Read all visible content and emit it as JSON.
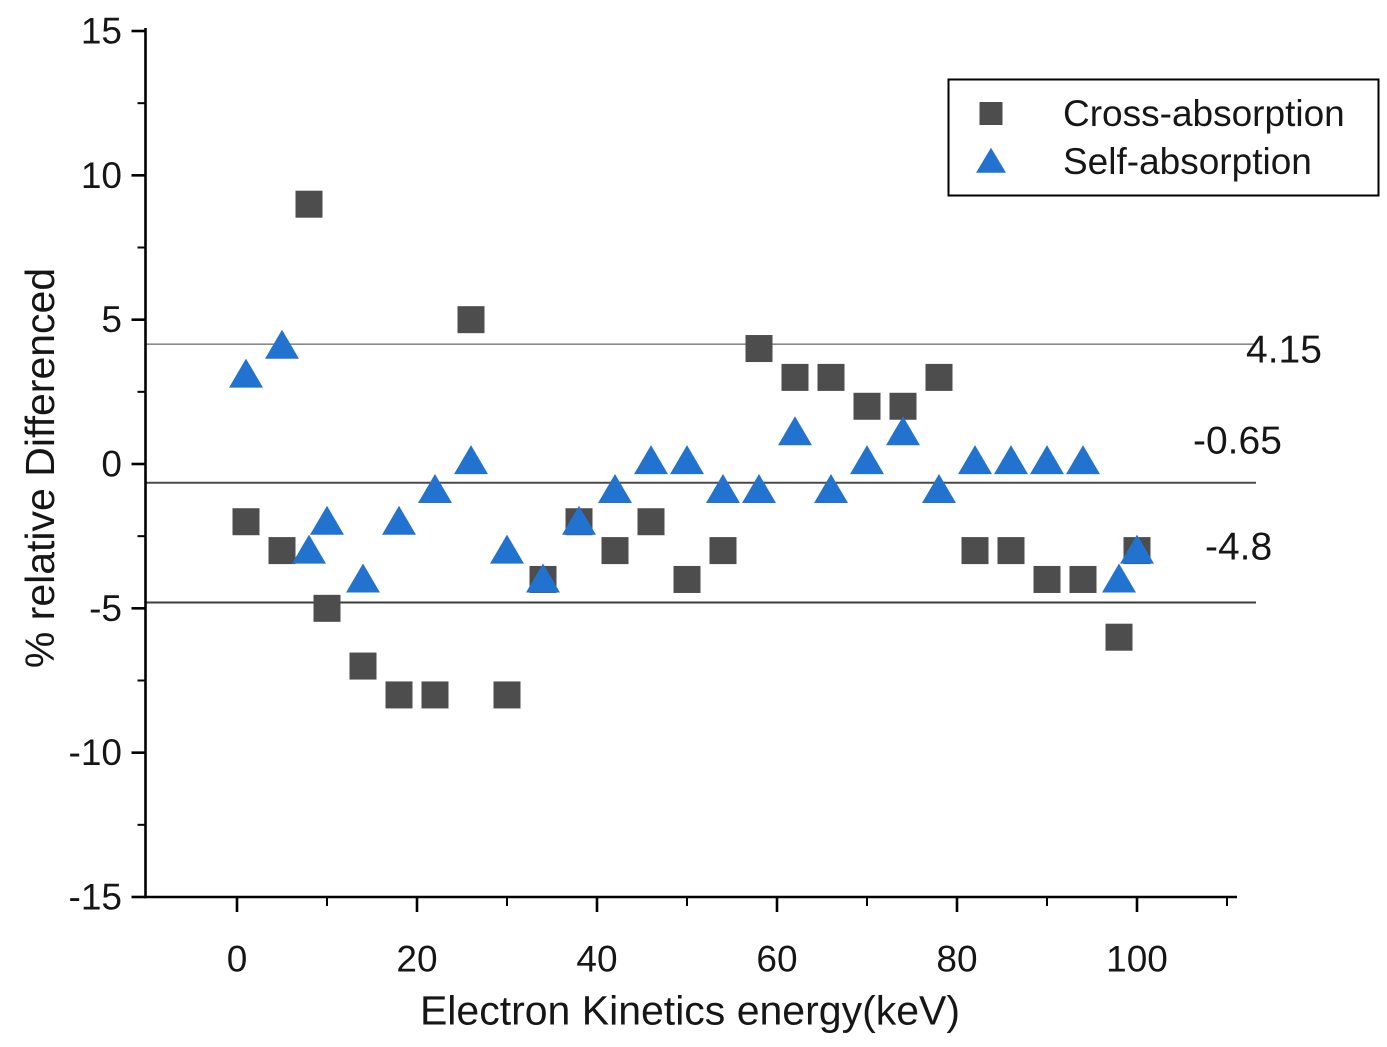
{
  "chart_data": {
    "type": "scatter",
    "title": "",
    "xlabel": "Electron Kinetics energy(keV)",
    "ylabel": "% relative Differenced",
    "xlim": [
      -10.2,
      111.2
    ],
    "ylim": [
      -15,
      15
    ],
    "x_major_ticks": [
      0,
      20,
      40,
      60,
      80,
      100
    ],
    "x_minor_ticks": [
      10,
      30,
      50,
      70,
      90,
      110
    ],
    "y_major_ticks": [
      15,
      10,
      5,
      0,
      -5,
      -10,
      -15
    ],
    "y_minor_ticks": [
      12.5,
      7.5,
      2.5,
      -2.5,
      -7.5,
      -12.5
    ],
    "grid": "off",
    "x": [
      1,
      5,
      8,
      10,
      14,
      18,
      22,
      26,
      30,
      34,
      38,
      42,
      46,
      50,
      54,
      58,
      62,
      66,
      70,
      74,
      78,
      82,
      86,
      90,
      94,
      98,
      100
    ],
    "series": [
      {
        "name": "Cross-absorption",
        "marker": "square",
        "color": "#4d4d4d",
        "values": [
          -2,
          -3,
          9,
          -5,
          -7,
          -8,
          -8,
          5,
          -8,
          -4,
          -2,
          -3,
          -2,
          -4,
          -3,
          4,
          3,
          3,
          2,
          2,
          3,
          -3,
          -3,
          -4,
          -4,
          -6,
          -3
        ]
      },
      {
        "name": "Self-absorption",
        "marker": "triangle",
        "color": "#2273d0",
        "values": [
          3.1,
          4.1,
          -3,
          -2,
          -4,
          -2,
          -0.9,
          0.1,
          -3,
          -4,
          -2,
          -0.9,
          0.1,
          0.1,
          -0.9,
          -0.9,
          1.1,
          -0.9,
          0.1,
          1.1,
          -0.9,
          0.1,
          0.1,
          0.1,
          0.1,
          -4,
          -3
        ]
      }
    ],
    "ref_lines": [
      {
        "value": 4.15,
        "label": "4.15",
        "color": "#8a8a8a",
        "width": 1.6
      },
      {
        "value": -0.65,
        "label": "-0.65",
        "color": "#4a4a4a",
        "width": 2
      },
      {
        "value": -4.8,
        "label": "-4.8",
        "color": "#3c3c3c",
        "width": 2
      }
    ],
    "legend": {
      "position": "top-right",
      "items": [
        {
          "label": "Cross-absorption",
          "marker": "square",
          "color": "#4d4d4d"
        },
        {
          "label": "Self-absorption",
          "marker": "triangle",
          "color": "#2273d0"
        }
      ]
    },
    "axis_color": "#000000"
  }
}
